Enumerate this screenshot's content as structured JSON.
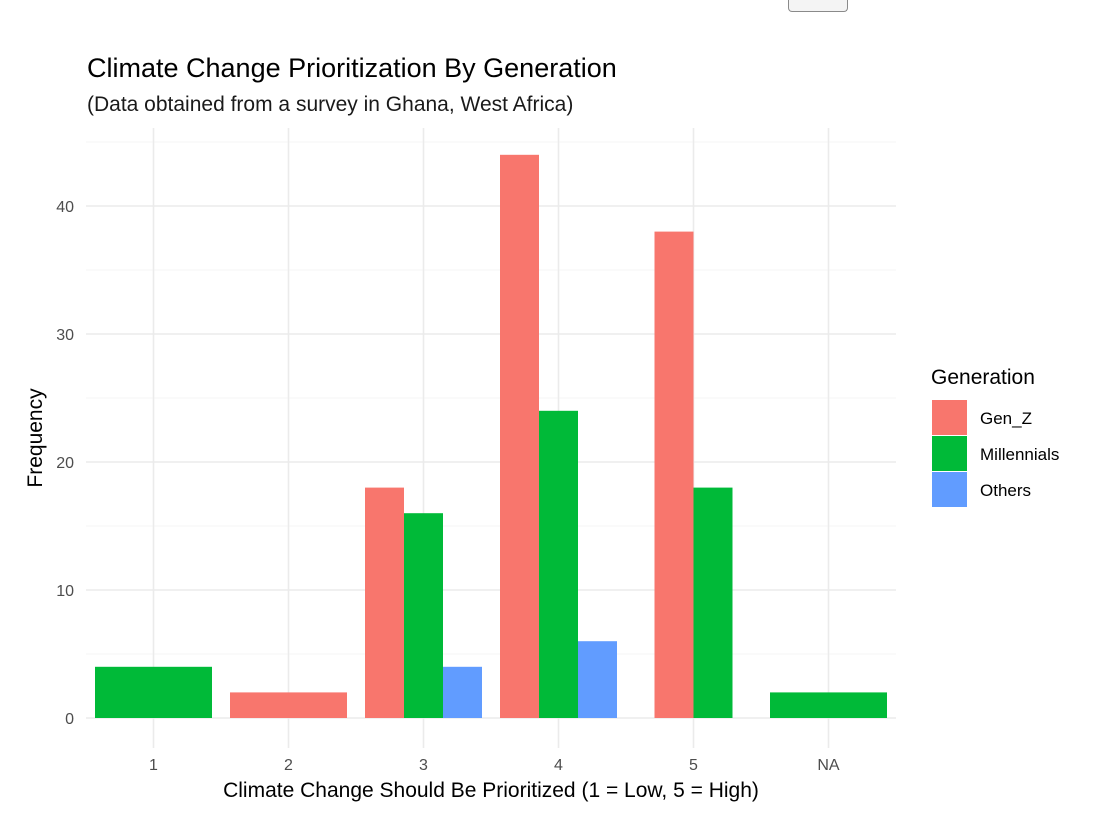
{
  "chart_data": {
    "type": "bar",
    "title": "Climate Change Prioritization By Generation",
    "subtitle": "(Data obtained from a survey in Ghana, West Africa)",
    "xlabel": "Climate Change Should Be Prioritized (1 = Low, 5 = High)",
    "ylabel": "Frequency",
    "categories": [
      "1",
      "2",
      "3",
      "4",
      "5",
      "NA"
    ],
    "ylim": [
      0,
      45
    ],
    "yticks": [
      0,
      10,
      20,
      30,
      40
    ],
    "grid": true,
    "legend": {
      "title": "Generation",
      "placement": "right"
    },
    "series": [
      {
        "name": "Gen_Z",
        "color": "#F8766D",
        "values": [
          null,
          2,
          18,
          44,
          38,
          null
        ]
      },
      {
        "name": "Millennials",
        "color": "#00BA38",
        "values": [
          4,
          null,
          16,
          24,
          18,
          2
        ]
      },
      {
        "name": "Others",
        "color": "#619CFF",
        "values": [
          null,
          null,
          4,
          6,
          null,
          null
        ]
      }
    ]
  }
}
